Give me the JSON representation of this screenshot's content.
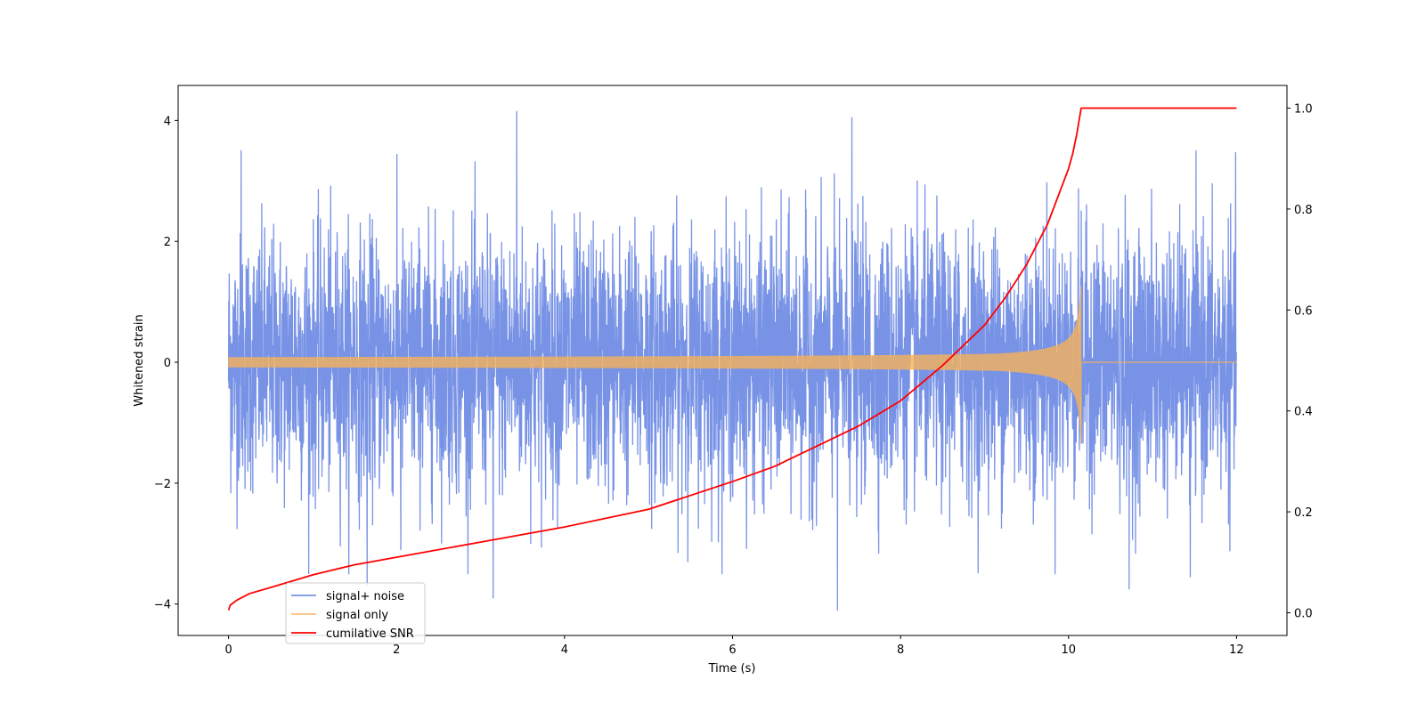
{
  "chart_data": {
    "type": "line",
    "xlabel": "Time (s)",
    "ylabel": "Whitened strain",
    "y2label": "",
    "xlim": [
      -0.6,
      12.6
    ],
    "ylim": [
      -4.52,
      4.58
    ],
    "y2lim": [
      -0.045,
      1.045
    ],
    "xticks": [
      0,
      2,
      4,
      6,
      8,
      10,
      12
    ],
    "yticks": [
      -4,
      -2,
      0,
      2,
      4
    ],
    "y2ticks": [
      0.0,
      0.2,
      0.4,
      0.6,
      0.8,
      1.0
    ],
    "xtick_labels": [
      "0",
      "2",
      "4",
      "6",
      "8",
      "10",
      "12"
    ],
    "ytick_labels": [
      "−4",
      "−2",
      "0",
      "2",
      "4"
    ],
    "y2tick_labels": [
      "0.0",
      "0.2",
      "0.4",
      "0.6",
      "0.8",
      "1.0"
    ],
    "merger_time": 10.15,
    "legend_position": "lower-left",
    "series": [
      {
        "name": "signal+ noise",
        "color": "#7893e6",
        "axis": "left",
        "kind": "noise",
        "x_range": [
          0,
          12
        ],
        "noise_std": 1.0,
        "peaks": [
          [
            1.65,
            -3.7
          ],
          [
            3.43,
            4.15
          ],
          [
            3.15,
            -3.9
          ],
          [
            7.25,
            -4.1
          ],
          [
            7.42,
            4.05
          ],
          [
            10.72,
            -3.75
          ],
          [
            11.45,
            -3.55
          ],
          [
            0.15,
            3.5
          ],
          [
            2.05,
            -3.1
          ]
        ]
      },
      {
        "name": "signal only",
        "color": "#f5b25a",
        "axis": "left",
        "kind": "chirp",
        "x_range": [
          0,
          12
        ],
        "amplitude_at_start": 0.05,
        "amplitude_at_merger": 1.35,
        "amplitude_after_merger": 0.0
      },
      {
        "name": "cumilative SNR",
        "color": "#ff0000",
        "axis": "right",
        "kind": "line",
        "x": [
          0,
          0.02,
          0.1,
          0.25,
          0.5,
          1.0,
          1.5,
          2.0,
          3.0,
          4.0,
          5.0,
          6.0,
          6.5,
          7.0,
          7.5,
          8.0,
          8.5,
          9.0,
          9.25,
          9.5,
          9.75,
          10.0,
          10.05,
          10.1,
          10.15,
          12.0
        ],
        "values": [
          0.005,
          0.015,
          0.025,
          0.038,
          0.05,
          0.075,
          0.095,
          0.11,
          0.14,
          0.17,
          0.205,
          0.26,
          0.29,
          0.33,
          0.37,
          0.42,
          0.49,
          0.57,
          0.625,
          0.69,
          0.77,
          0.88,
          0.91,
          0.95,
          1.0,
          1.0
        ]
      }
    ]
  }
}
